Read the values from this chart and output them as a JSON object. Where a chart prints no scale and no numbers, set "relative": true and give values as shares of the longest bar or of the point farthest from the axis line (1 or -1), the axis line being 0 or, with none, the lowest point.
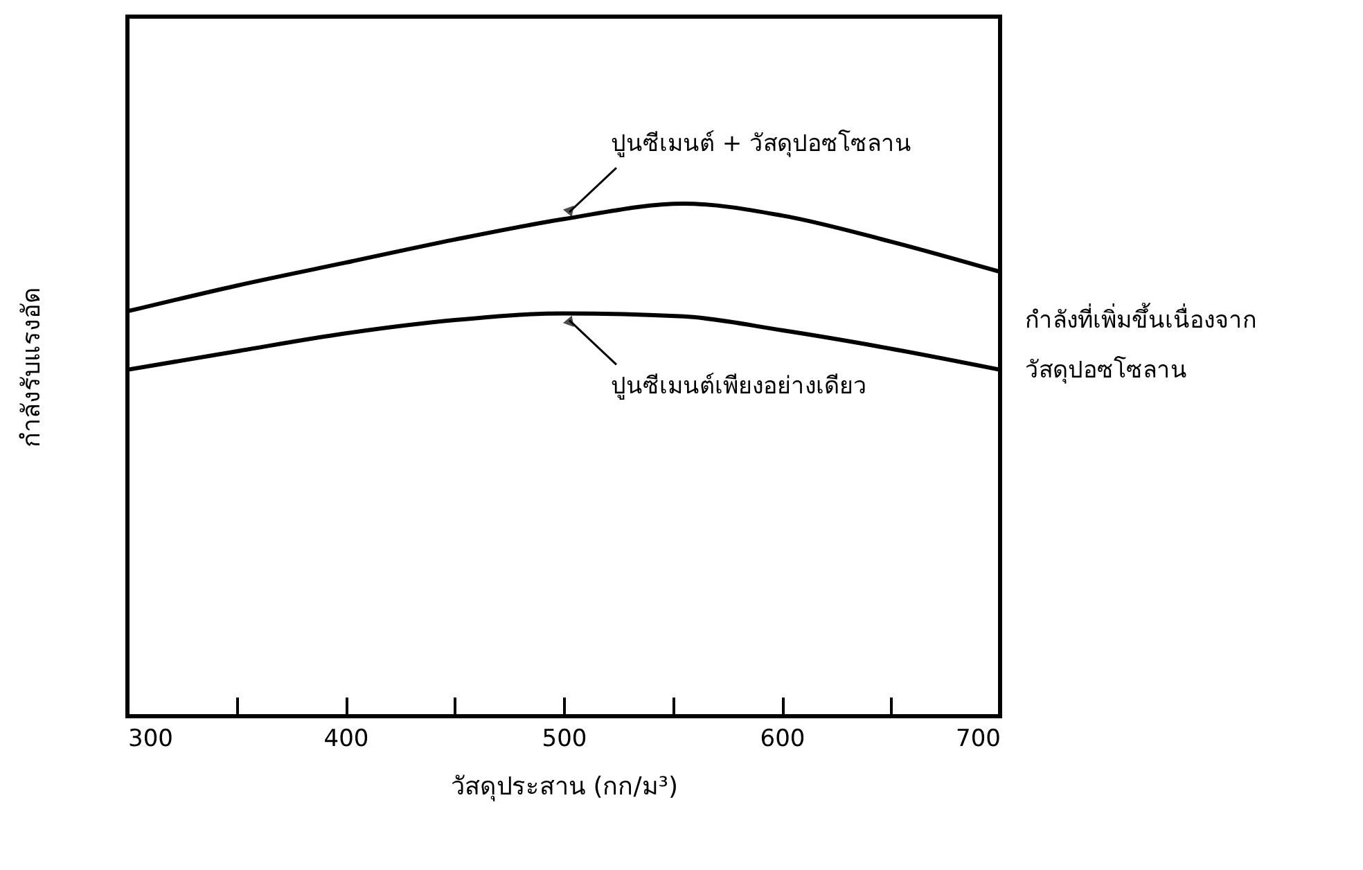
{
  "chart_data": {
    "type": "line",
    "relative": true,
    "xlabel": "วัสดุประสาน (กก/ม³)",
    "ylabel": "กำลังรับแรงอัด",
    "x": [
      300,
      350,
      400,
      450,
      500,
      555,
      600,
      650,
      700
    ],
    "series": [
      {
        "color": "#000000",
        "values": [
          0.79,
          0.84,
          0.885,
          0.93,
          0.97,
          1,
          0.977,
          0.926,
          0.867
        ]
      },
      {
        "color": "#000000",
        "values": [
          0.676,
          0.712,
          0.747,
          0.773,
          0.786,
          0.78,
          0.753,
          0.717,
          0.676
        ]
      }
    ],
    "xlim": [
      300,
      700
    ],
    "xticks": [
      300,
      {
        "value": 350,
        "label": null
      },
      400,
      {
        "value": 450,
        "label": null
      },
      500,
      {
        "value": 550,
        "label": null
      },
      600,
      {
        "value": 650,
        "label": null
      },
      700
    ],
    "grid": false,
    "legend": false,
    "marker": "none",
    "line_style": "solid",
    "annotations": [
      "ปูนซีเมนต์ + วัสดุปอซโซลาน",
      "ปูนซีเมนต์เพียงอย่างเดียว",
      "กำลังที่เพิ่มขึ้นเนื่องจาก วัสดุปอซโซลาน"
    ]
  }
}
